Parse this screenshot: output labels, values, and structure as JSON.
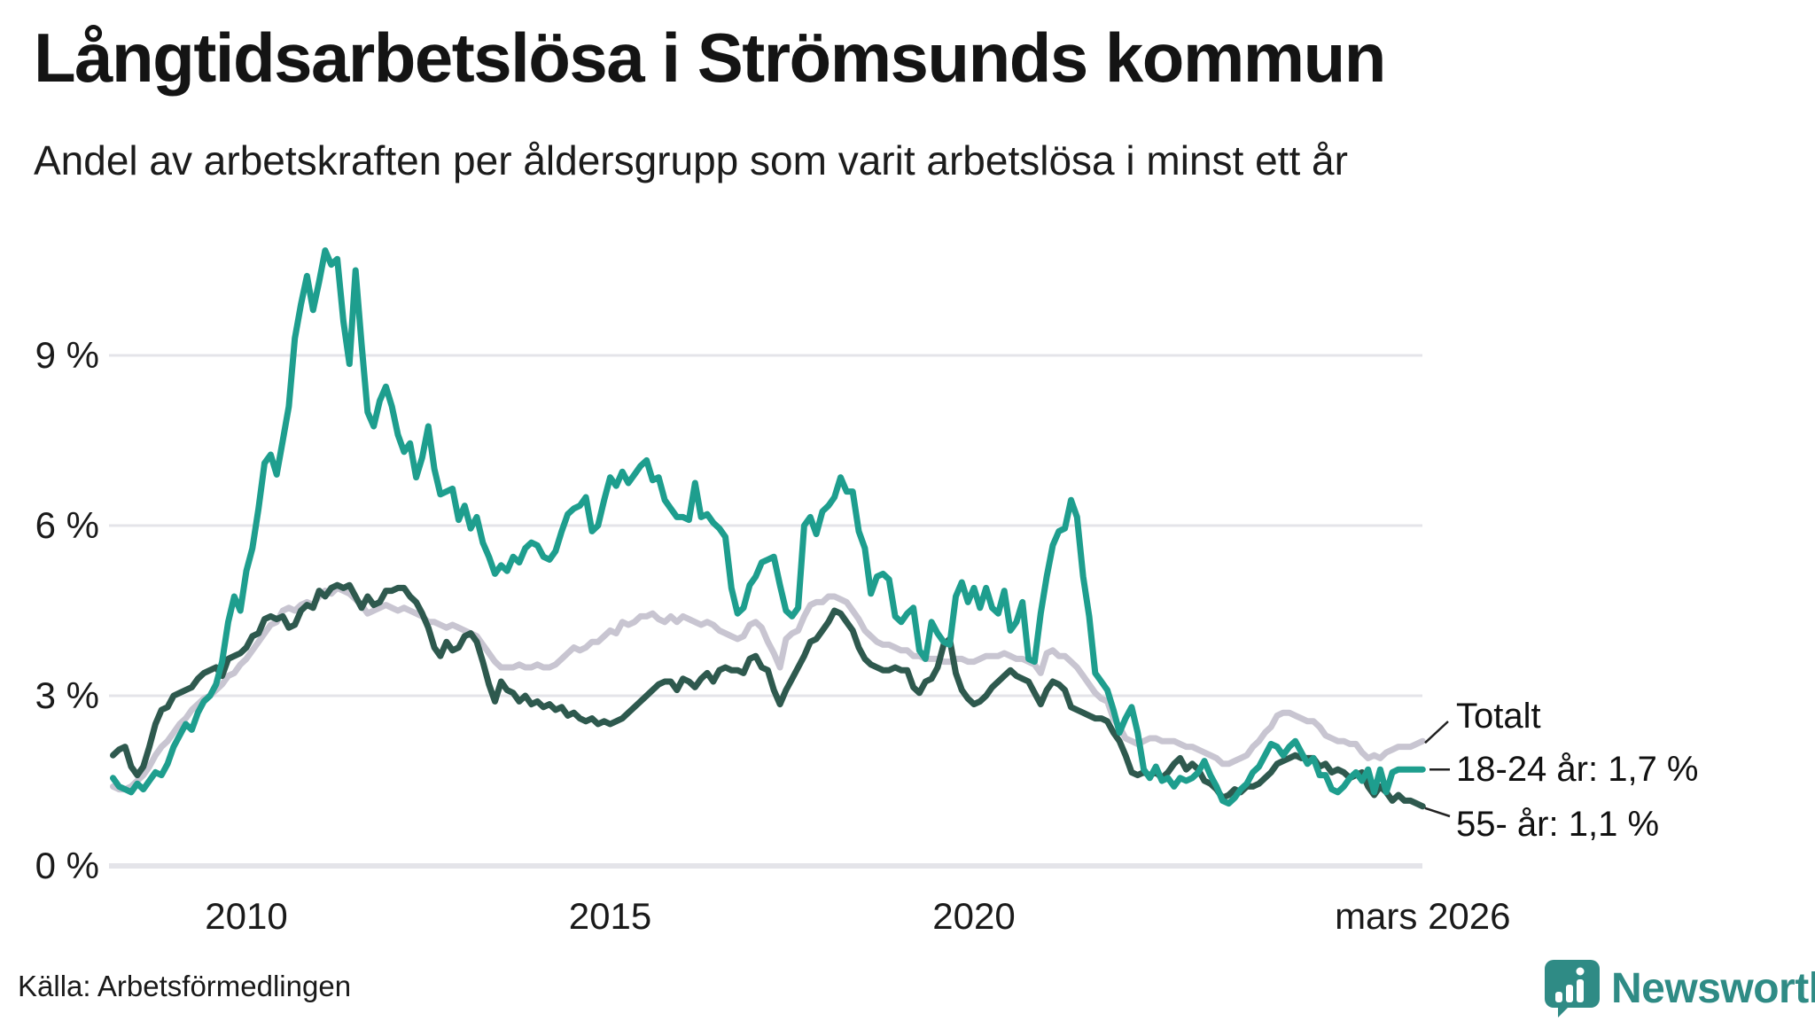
{
  "header": {
    "title": "Långtidsarbetslösa i Strömsunds kommun",
    "subtitle": "Andel av arbetskraften per åldersgrupp som varit arbetslösa i minst ett år"
  },
  "annotations": {
    "total_label": "Totalt",
    "young_label": "18-24 år: 1,7 %",
    "old_label": "55- år: 1,1 %"
  },
  "footer": {
    "source": "Källa: Arbetsförmedlingen",
    "brand_name": "Newsworthy"
  },
  "colors": {
    "young": "#1e9e8e",
    "old": "#2e594e",
    "total": "#c8c5d1",
    "grid": "#e4e4e9",
    "text": "#1a1a1a",
    "brand": "#2f8b85"
  },
  "chart_data": {
    "type": "line",
    "title": "Långtidsarbetslösa i Strömsunds kommun",
    "subtitle": "Andel av arbetskraften per åldersgrupp som varit arbetslösa i minst ett år",
    "x_start": 2008.1667,
    "x_step": 0.0833333,
    "xlim": [
      2008.0,
      2026.35
    ],
    "ylim": [
      0,
      11
    ],
    "grid": "horizontal",
    "legend_position": "end-of-line-labels",
    "y_ticks": [
      {
        "v": 0,
        "label": "0 %"
      },
      {
        "v": 3,
        "label": "3 %"
      },
      {
        "v": 6,
        "label": "6 %"
      },
      {
        "v": 9,
        "label": "9 %"
      }
    ],
    "x_ticks": [
      {
        "t": 2010,
        "label": "2010"
      },
      {
        "t": 2015,
        "label": "2015"
      },
      {
        "t": 2020,
        "label": "2020"
      },
      {
        "t": 2026.1667,
        "label": "mars 2026"
      }
    ],
    "series": [
      {
        "name": "Totalt",
        "color_key": "total",
        "values": [
          1.4,
          1.35,
          1.35,
          1.4,
          1.5,
          1.6,
          1.75,
          1.95,
          2.1,
          2.2,
          2.35,
          2.5,
          2.6,
          2.75,
          2.85,
          2.95,
          3.0,
          3.1,
          3.2,
          3.35,
          3.4,
          3.55,
          3.65,
          3.8,
          3.95,
          4.1,
          4.25,
          4.3,
          4.5,
          4.55,
          4.5,
          4.6,
          4.65,
          4.6,
          4.75,
          4.85,
          4.8,
          4.9,
          4.85,
          4.8,
          4.7,
          4.6,
          4.45,
          4.5,
          4.55,
          4.6,
          4.55,
          4.5,
          4.55,
          4.5,
          4.45,
          4.4,
          4.3,
          4.3,
          4.25,
          4.2,
          4.25,
          4.2,
          4.15,
          4.1,
          4.05,
          3.9,
          3.75,
          3.6,
          3.5,
          3.5,
          3.5,
          3.55,
          3.5,
          3.5,
          3.55,
          3.5,
          3.5,
          3.55,
          3.65,
          3.75,
          3.85,
          3.8,
          3.85,
          3.95,
          3.95,
          4.05,
          4.15,
          4.1,
          4.3,
          4.25,
          4.3,
          4.4,
          4.4,
          4.45,
          4.35,
          4.3,
          4.4,
          4.3,
          4.4,
          4.35,
          4.3,
          4.25,
          4.3,
          4.25,
          4.15,
          4.1,
          4.05,
          4.0,
          4.05,
          4.25,
          4.3,
          4.2,
          3.95,
          3.75,
          3.5,
          4.0,
          4.1,
          4.15,
          4.4,
          4.6,
          4.65,
          4.65,
          4.75,
          4.75,
          4.7,
          4.65,
          4.5,
          4.35,
          4.15,
          4.05,
          3.95,
          3.9,
          3.9,
          3.85,
          3.8,
          3.8,
          3.7,
          3.7,
          3.65,
          3.65,
          3.65,
          3.6,
          3.6,
          3.65,
          3.65,
          3.6,
          3.6,
          3.65,
          3.7,
          3.7,
          3.7,
          3.75,
          3.7,
          3.65,
          3.65,
          3.6,
          3.55,
          3.4,
          3.75,
          3.8,
          3.7,
          3.7,
          3.6,
          3.5,
          3.35,
          3.2,
          3.05,
          2.95,
          2.9,
          2.6,
          2.45,
          2.25,
          2.2,
          2.15,
          2.2,
          2.25,
          2.25,
          2.2,
          2.2,
          2.2,
          2.15,
          2.1,
          2.1,
          2.05,
          2.0,
          1.95,
          1.9,
          1.8,
          1.8,
          1.85,
          1.9,
          1.95,
          2.1,
          2.2,
          2.35,
          2.45,
          2.65,
          2.7,
          2.7,
          2.65,
          2.6,
          2.55,
          2.55,
          2.45,
          2.3,
          2.25,
          2.2,
          2.2,
          2.15,
          2.15,
          2.0,
          1.9,
          1.95,
          1.9,
          2.0,
          2.05,
          2.1,
          2.1,
          2.1,
          2.15,
          2.2
        ]
      },
      {
        "name": "55- år",
        "color_key": "old",
        "end_value_label": "1,1 %",
        "values": [
          1.95,
          2.05,
          2.1,
          1.75,
          1.6,
          1.75,
          2.1,
          2.5,
          2.75,
          2.8,
          3.0,
          3.05,
          3.1,
          3.15,
          3.3,
          3.4,
          3.45,
          3.5,
          3.35,
          3.65,
          3.7,
          3.75,
          3.85,
          4.05,
          4.1,
          4.35,
          4.4,
          4.35,
          4.4,
          4.2,
          4.25,
          4.5,
          4.6,
          4.55,
          4.85,
          4.75,
          4.9,
          4.95,
          4.9,
          4.95,
          4.75,
          4.55,
          4.75,
          4.6,
          4.65,
          4.85,
          4.85,
          4.9,
          4.9,
          4.75,
          4.65,
          4.45,
          4.2,
          3.85,
          3.7,
          3.95,
          3.8,
          3.85,
          4.05,
          4.1,
          3.95,
          3.6,
          3.2,
          2.9,
          3.25,
          3.1,
          3.05,
          2.9,
          3.0,
          2.85,
          2.9,
          2.8,
          2.85,
          2.75,
          2.8,
          2.65,
          2.7,
          2.6,
          2.55,
          2.6,
          2.5,
          2.55,
          2.5,
          2.55,
          2.6,
          2.7,
          2.8,
          2.9,
          3.0,
          3.1,
          3.2,
          3.25,
          3.25,
          3.1,
          3.3,
          3.25,
          3.15,
          3.3,
          3.4,
          3.25,
          3.45,
          3.5,
          3.45,
          3.45,
          3.4,
          3.65,
          3.7,
          3.5,
          3.45,
          3.1,
          2.85,
          3.1,
          3.3,
          3.5,
          3.7,
          3.95,
          4.0,
          4.15,
          4.3,
          4.5,
          4.45,
          4.3,
          4.15,
          3.85,
          3.65,
          3.55,
          3.5,
          3.45,
          3.45,
          3.5,
          3.45,
          3.45,
          3.15,
          3.05,
          3.25,
          3.3,
          3.5,
          3.9,
          4.0,
          3.4,
          3.1,
          2.95,
          2.85,
          2.9,
          3.0,
          3.15,
          3.25,
          3.35,
          3.45,
          3.35,
          3.3,
          3.25,
          3.05,
          2.85,
          3.1,
          3.25,
          3.2,
          3.1,
          2.8,
          2.75,
          2.7,
          2.65,
          2.6,
          2.6,
          2.55,
          2.35,
          2.2,
          1.95,
          1.65,
          1.6,
          1.65,
          1.6,
          1.65,
          1.55,
          1.65,
          1.8,
          1.9,
          1.7,
          1.8,
          1.7,
          1.5,
          1.45,
          1.35,
          1.2,
          1.25,
          1.35,
          1.3,
          1.4,
          1.4,
          1.45,
          1.55,
          1.65,
          1.8,
          1.85,
          1.9,
          1.95,
          1.9,
          1.9,
          1.9,
          1.75,
          1.8,
          1.65,
          1.7,
          1.65,
          1.55,
          1.6,
          1.65,
          1.4,
          1.25,
          1.4,
          1.3,
          1.15,
          1.25,
          1.15,
          1.15,
          1.1,
          1.05
        ]
      },
      {
        "name": "18-24 år",
        "color_key": "young",
        "end_value_label": "1,7 %",
        "values": [
          1.55,
          1.4,
          1.35,
          1.3,
          1.45,
          1.35,
          1.5,
          1.65,
          1.6,
          1.8,
          2.1,
          2.3,
          2.5,
          2.4,
          2.7,
          2.9,
          3.0,
          3.2,
          3.6,
          4.3,
          4.75,
          4.5,
          5.2,
          5.6,
          6.3,
          7.1,
          7.25,
          6.9,
          7.5,
          8.1,
          9.3,
          9.9,
          10.4,
          9.8,
          10.3,
          10.85,
          10.6,
          10.7,
          9.6,
          8.85,
          10.5,
          9.2,
          8.0,
          7.75,
          8.2,
          8.45,
          8.1,
          7.6,
          7.3,
          7.45,
          6.85,
          7.2,
          7.75,
          7.0,
          6.55,
          6.6,
          6.65,
          6.1,
          6.35,
          5.95,
          6.15,
          5.7,
          5.45,
          5.15,
          5.3,
          5.2,
          5.45,
          5.35,
          5.6,
          5.7,
          5.65,
          5.45,
          5.4,
          5.55,
          5.9,
          6.2,
          6.3,
          6.35,
          6.5,
          5.9,
          6.0,
          6.45,
          6.85,
          6.7,
          6.95,
          6.75,
          6.9,
          7.05,
          7.15,
          6.8,
          6.85,
          6.45,
          6.3,
          6.15,
          6.15,
          6.1,
          6.75,
          6.15,
          6.2,
          6.05,
          5.95,
          5.8,
          4.9,
          4.45,
          4.55,
          4.95,
          5.1,
          5.35,
          5.4,
          5.45,
          4.95,
          4.5,
          4.4,
          4.55,
          6.0,
          6.15,
          5.85,
          6.25,
          6.35,
          6.5,
          6.85,
          6.6,
          6.6,
          5.9,
          5.6,
          4.8,
          5.1,
          5.15,
          5.05,
          4.4,
          4.3,
          4.45,
          4.55,
          3.8,
          3.65,
          4.3,
          4.1,
          3.95,
          3.9,
          4.75,
          5.0,
          4.65,
          4.9,
          4.55,
          4.9,
          4.55,
          4.45,
          4.85,
          4.15,
          4.3,
          4.65,
          3.65,
          3.6,
          4.45,
          5.1,
          5.65,
          5.9,
          5.95,
          6.45,
          6.15,
          5.1,
          4.4,
          3.4,
          3.25,
          3.1,
          2.75,
          2.35,
          2.6,
          2.8,
          2.35,
          1.7,
          1.55,
          1.75,
          1.5,
          1.55,
          1.4,
          1.55,
          1.5,
          1.55,
          1.65,
          1.85,
          1.6,
          1.4,
          1.15,
          1.1,
          1.2,
          1.35,
          1.45,
          1.65,
          1.75,
          1.95,
          2.15,
          2.1,
          1.95,
          2.1,
          2.2,
          2.0,
          1.8,
          1.9,
          1.6,
          1.6,
          1.35,
          1.3,
          1.4,
          1.55,
          1.65,
          1.5,
          1.7,
          1.3,
          1.7,
          1.3,
          1.65,
          1.7,
          1.7,
          1.7,
          1.7,
          1.7
        ]
      }
    ]
  }
}
